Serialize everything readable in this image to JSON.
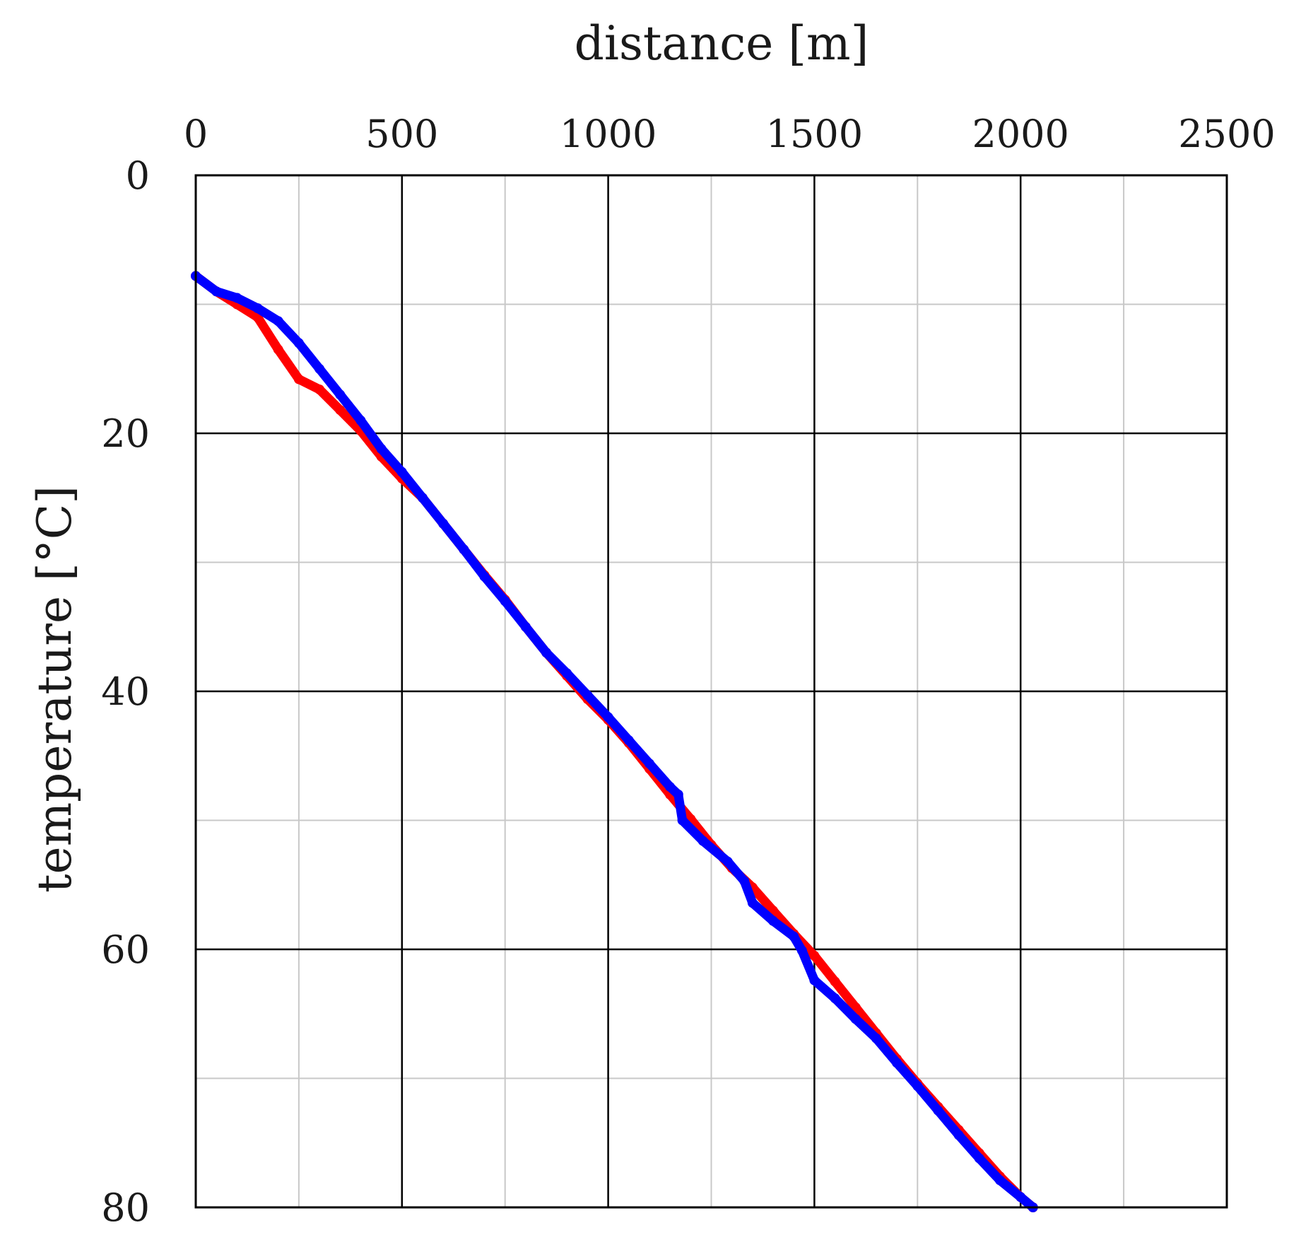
{
  "chart_data": {
    "type": "line",
    "xlabel": "distance [m]",
    "ylabel": "temperature [°C]",
    "xlim": [
      0,
      2500
    ],
    "ylim": [
      0,
      80
    ],
    "y_inverted": true,
    "x_axis_position": "top",
    "x_ticks": [
      0,
      500,
      1000,
      1500,
      2000,
      2500
    ],
    "y_ticks": [
      0,
      20,
      40,
      60,
      80
    ],
    "x_minor_step": 250,
    "y_minor_step": 10,
    "grid": true,
    "colors": {
      "major_grid": "#000000",
      "minor_grid": "#c8c8c8"
    },
    "series": [
      {
        "color": "#ff0000",
        "points": [
          [
            0,
            7.8
          ],
          [
            50,
            9.0
          ],
          [
            100,
            10.0
          ],
          [
            150,
            11.0
          ],
          [
            200,
            13.5
          ],
          [
            250,
            15.8
          ],
          [
            300,
            16.6
          ],
          [
            350,
            18.2
          ],
          [
            400,
            19.8
          ],
          [
            450,
            21.8
          ],
          [
            500,
            23.5
          ],
          [
            550,
            25.0
          ],
          [
            600,
            27.0
          ],
          [
            650,
            29.0
          ],
          [
            700,
            31.0
          ],
          [
            750,
            32.9
          ],
          [
            800,
            35.0
          ],
          [
            850,
            37.0
          ],
          [
            900,
            38.8
          ],
          [
            950,
            40.6
          ],
          [
            1000,
            42.2
          ],
          [
            1050,
            44.0
          ],
          [
            1100,
            46.0
          ],
          [
            1150,
            48.0
          ],
          [
            1200,
            49.9
          ],
          [
            1250,
            51.9
          ],
          [
            1300,
            53.7
          ],
          [
            1350,
            55.2
          ],
          [
            1400,
            57.0
          ],
          [
            1450,
            58.8
          ],
          [
            1500,
            60.5
          ],
          [
            1550,
            62.5
          ],
          [
            1600,
            64.5
          ],
          [
            1650,
            66.5
          ],
          [
            1700,
            68.5
          ],
          [
            1750,
            70.4
          ],
          [
            1800,
            72.2
          ],
          [
            1850,
            74.0
          ],
          [
            1900,
            75.8
          ],
          [
            1950,
            77.6
          ],
          [
            2000,
            79.2
          ],
          [
            2030,
            80.0
          ]
        ]
      },
      {
        "color": "#0000ff",
        "points": [
          [
            0,
            7.8
          ],
          [
            50,
            9.0
          ],
          [
            100,
            9.5
          ],
          [
            150,
            10.3
          ],
          [
            200,
            11.3
          ],
          [
            250,
            13.0
          ],
          [
            300,
            15.0
          ],
          [
            350,
            17.0
          ],
          [
            400,
            19.0
          ],
          [
            450,
            21.2
          ],
          [
            500,
            23.0
          ],
          [
            550,
            25.0
          ],
          [
            600,
            27.0
          ],
          [
            650,
            29.0
          ],
          [
            700,
            31.1
          ],
          [
            750,
            33.0
          ],
          [
            800,
            35.0
          ],
          [
            850,
            37.0
          ],
          [
            900,
            38.6
          ],
          [
            950,
            40.3
          ],
          [
            1000,
            42.0
          ],
          [
            1050,
            43.8
          ],
          [
            1100,
            45.6
          ],
          [
            1150,
            47.4
          ],
          [
            1170,
            48.0
          ],
          [
            1180,
            50.0
          ],
          [
            1230,
            51.6
          ],
          [
            1290,
            53.2
          ],
          [
            1330,
            54.7
          ],
          [
            1350,
            56.4
          ],
          [
            1400,
            57.8
          ],
          [
            1450,
            59.0
          ],
          [
            1470,
            60.1
          ],
          [
            1500,
            62.4
          ],
          [
            1550,
            63.8
          ],
          [
            1600,
            65.4
          ],
          [
            1650,
            66.9
          ],
          [
            1700,
            68.8
          ],
          [
            1750,
            70.6
          ],
          [
            1800,
            72.5
          ],
          [
            1850,
            74.4
          ],
          [
            1900,
            76.2
          ],
          [
            1950,
            77.9
          ],
          [
            2000,
            79.2
          ],
          [
            2030,
            80.0
          ]
        ]
      }
    ]
  }
}
